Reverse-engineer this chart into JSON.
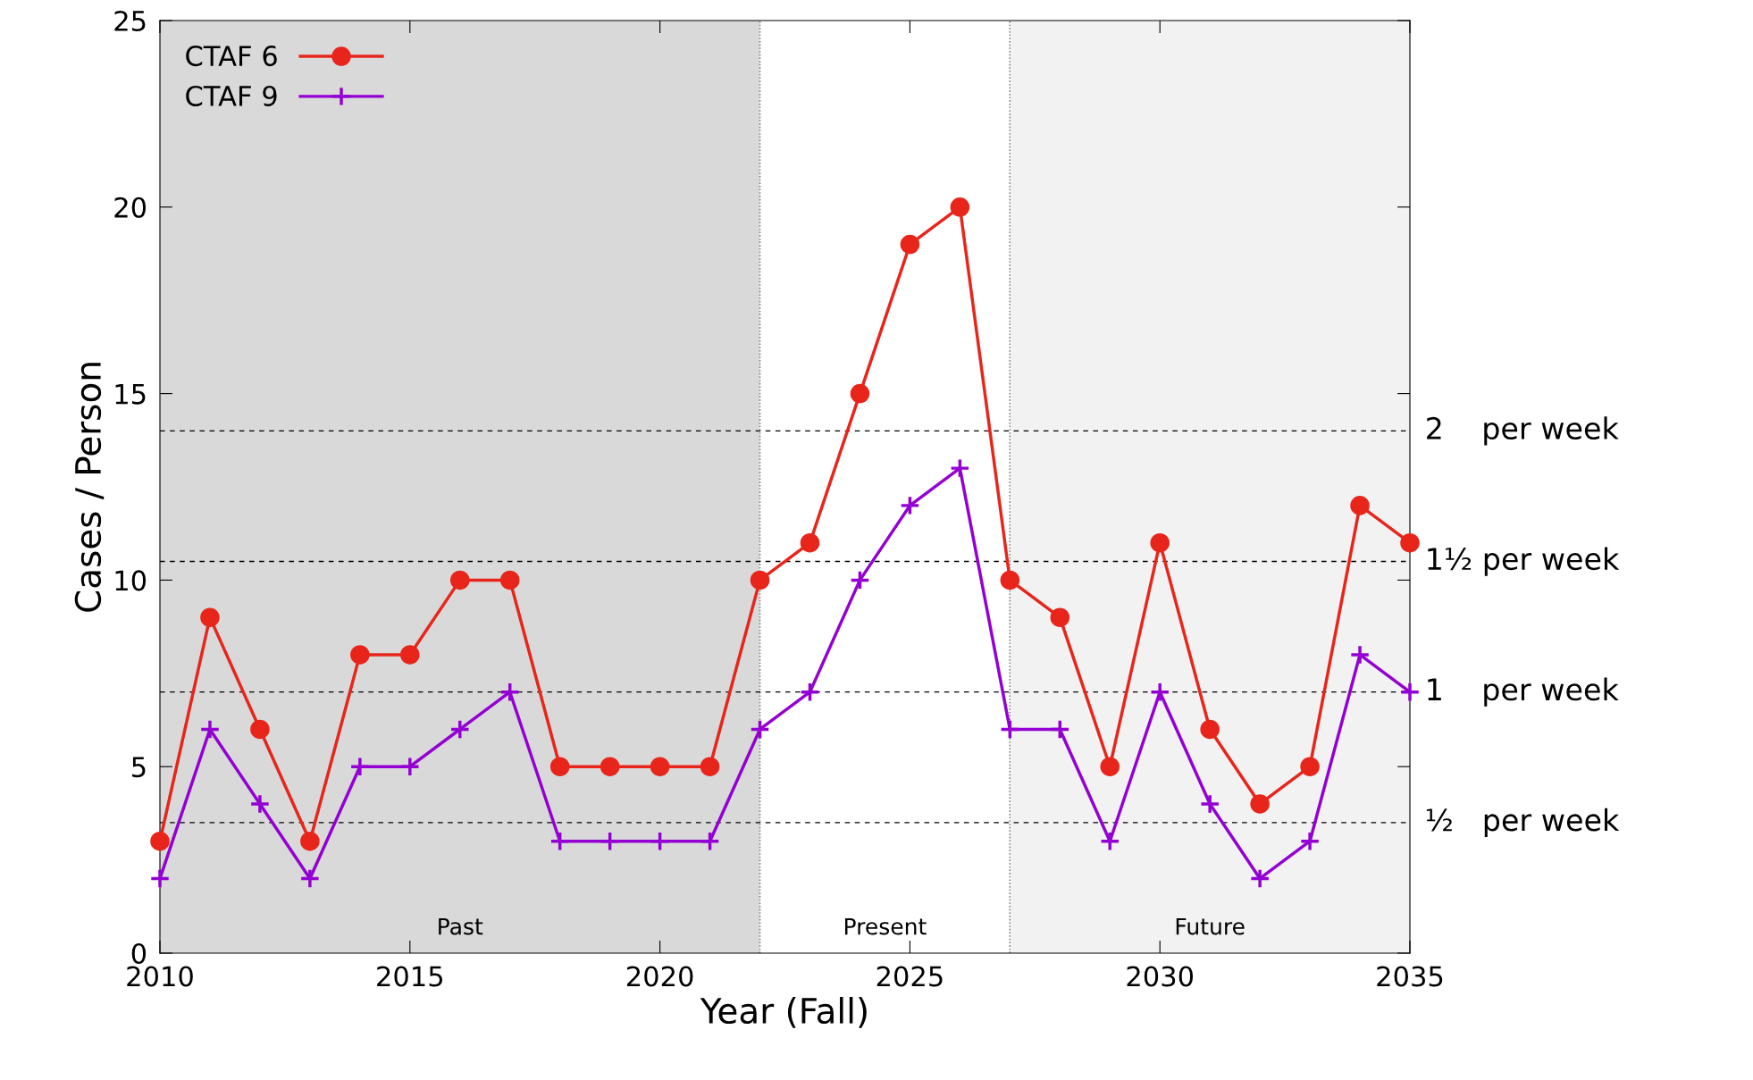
{
  "chart_data": {
    "type": "line",
    "xlabel": "Year (Fall)",
    "ylabel": "Cases / Person",
    "x": [
      2010,
      2011,
      2012,
      2013,
      2014,
      2015,
      2016,
      2017,
      2018,
      2019,
      2020,
      2021,
      2022,
      2023,
      2024,
      2025,
      2026,
      2027,
      2028,
      2029,
      2030,
      2031,
      2032,
      2033,
      2034,
      2035
    ],
    "series": [
      {
        "name": "CTAF 6",
        "color": "#e8251b",
        "marker": "circle",
        "values": [
          3,
          9,
          6,
          3,
          8,
          8,
          10,
          10,
          5,
          5,
          5,
          5,
          10,
          11,
          15,
          19,
          20,
          10,
          9,
          5,
          11,
          6,
          4,
          5,
          12,
          11
        ]
      },
      {
        "name": "CTAF 9",
        "color": "#9400d3",
        "marker": "cross",
        "values": [
          2,
          6,
          4,
          2,
          5,
          5,
          6,
          7,
          3,
          3,
          3,
          3,
          6,
          7,
          10,
          12,
          13,
          6,
          6,
          3,
          7,
          4,
          2,
          3,
          8,
          7
        ]
      }
    ],
    "xlim": [
      2010,
      2035
    ],
    "xticks": [
      2010,
      2015,
      2020,
      2025,
      2030,
      2035
    ],
    "ylim": [
      0,
      25
    ],
    "yticks": [
      0,
      5,
      10,
      15,
      20,
      25
    ],
    "ref_lines": [
      {
        "axis": "y",
        "value": 14,
        "label": "2    per week",
        "line_style": "dashed",
        "color": "#000000"
      },
      {
        "axis": "y",
        "value": 10.5,
        "label": "1½ per week",
        "line_style": "dashed",
        "color": "#000000"
      },
      {
        "axis": "y",
        "value": 7,
        "label": "1    per week",
        "line_style": "dashed",
        "color": "#000000"
      },
      {
        "axis": "y",
        "value": 3.5,
        "label": "½   per week",
        "line_style": "dashed",
        "color": "#000000"
      }
    ],
    "bands": [
      {
        "axis": "x",
        "from": 2010,
        "to": 2022,
        "label": "Past",
        "color": "#d9d9d9"
      },
      {
        "axis": "x",
        "from": 2022,
        "to": 2027,
        "label": "Present",
        "color": "#ffffff"
      },
      {
        "axis": "x",
        "from": 2027,
        "to": 2035,
        "label": "Future",
        "color": "#f2f2f2"
      }
    ],
    "legend": "top left",
    "grid": false,
    "line_style": "solid"
  }
}
